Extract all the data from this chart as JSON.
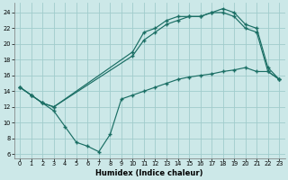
{
  "xlabel": "Humidex (Indice chaleur)",
  "bg_color": "#cce8e8",
  "grid_color": "#a0cccc",
  "line_color": "#1a6e64",
  "xlim": [
    -0.5,
    23.5
  ],
  "ylim": [
    5.5,
    25.2
  ],
  "yticks": [
    6,
    8,
    10,
    12,
    14,
    16,
    18,
    20,
    22,
    24
  ],
  "xticks": [
    0,
    1,
    2,
    3,
    4,
    5,
    6,
    7,
    8,
    9,
    10,
    11,
    12,
    13,
    14,
    15,
    16,
    17,
    18,
    19,
    20,
    21,
    22,
    23
  ],
  "line1_x": [
    0,
    1,
    2,
    3,
    4,
    5,
    6,
    7,
    8,
    9,
    10,
    11,
    12,
    13,
    14,
    15,
    16,
    17,
    18,
    19,
    20,
    21,
    22,
    23
  ],
  "line1_y": [
    14.5,
    13.5,
    12.5,
    11.5,
    9.5,
    7.5,
    7.0,
    6.3,
    8.5,
    13.0,
    13.5,
    14.0,
    14.5,
    15.0,
    15.5,
    15.8,
    16.0,
    16.2,
    16.5,
    16.7,
    17.0,
    16.5,
    16.5,
    15.5
  ],
  "line2_x": [
    0,
    1,
    2,
    3,
    10,
    11,
    12,
    13,
    14,
    15,
    16,
    17,
    18,
    19,
    20,
    21,
    22,
    23
  ],
  "line2_y": [
    14.5,
    13.5,
    12.5,
    12.0,
    18.5,
    20.5,
    21.5,
    22.5,
    23.0,
    23.5,
    23.5,
    24.0,
    24.0,
    23.5,
    22.0,
    21.5,
    16.5,
    15.5
  ],
  "line3_x": [
    0,
    1,
    2,
    3,
    10,
    11,
    12,
    13,
    14,
    15,
    16,
    17,
    18,
    19,
    20,
    21,
    22,
    23
  ],
  "line3_y": [
    14.5,
    13.5,
    12.5,
    12.0,
    19.0,
    21.5,
    22.0,
    23.0,
    23.5,
    23.5,
    23.5,
    24.0,
    24.5,
    24.0,
    22.5,
    22.0,
    17.0,
    15.5
  ]
}
